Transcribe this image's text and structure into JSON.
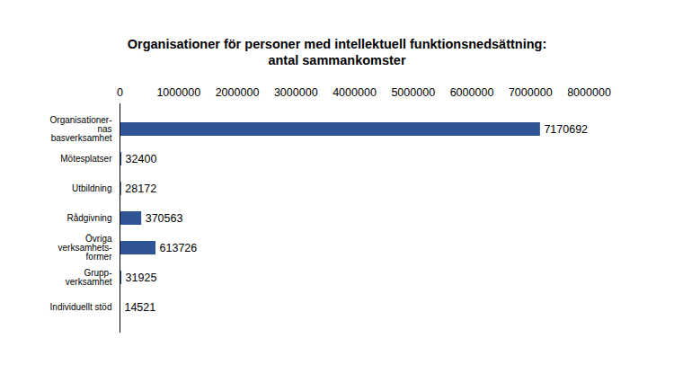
{
  "chart_data": {
    "type": "bar",
    "orientation": "horizontal",
    "title": "Organisationer för personer med intellektuell funktionsnedsättning:\nantal sammankomster",
    "categories": [
      "Organisationer-\nnas\nbasverksamhet",
      "Mötesplatser",
      "Utbildning",
      "Rådgivning",
      "Övriga\nverksamhets-\nformer",
      "Grupp-\nverksamhet",
      "Individuellt stöd"
    ],
    "values": [
      7170692,
      32400,
      28172,
      370563,
      613726,
      31925,
      14521
    ],
    "color": "#2f5597",
    "xlim": [
      0,
      8000000
    ],
    "xticks": [
      0,
      1000000,
      2000000,
      3000000,
      4000000,
      5000000,
      6000000,
      7000000,
      8000000
    ],
    "grid": false,
    "data_labels": true
  }
}
